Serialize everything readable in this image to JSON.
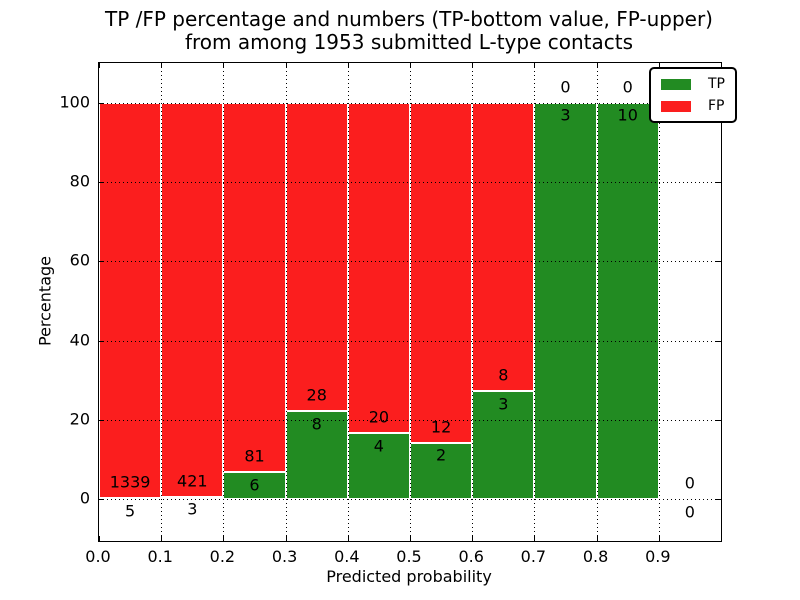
{
  "figure": {
    "title_line1": "TP /FP percentage and numbers (TP-bottom value, FP-upper)",
    "title_line2": "from among 1953 submitted L-type contacts",
    "xlabel": "Predicted probability",
    "ylabel": "Percentage"
  },
  "chart_data": {
    "type": "bar",
    "stacked": true,
    "normalized_to_percent": true,
    "title": "TP /FP percentage and numbers (TP-bottom value, FP-upper) from among 1953 submitted L-type contacts",
    "xlabel": "Predicted probability",
    "ylabel": "Percentage",
    "total_contacts": 1953,
    "xlim": [
      0.0,
      1.0
    ],
    "ylim": [
      -10.5,
      110
    ],
    "bin_width": 0.1,
    "bin_starts": [
      0.0,
      0.1,
      0.2,
      0.3,
      0.4,
      0.5,
      0.6,
      0.7,
      0.8,
      0.9
    ],
    "categories": [
      "0.0-0.1",
      "0.1-0.2",
      "0.2-0.3",
      "0.3-0.4",
      "0.4-0.5",
      "0.5-0.6",
      "0.6-0.7",
      "0.7-0.8",
      "0.8-0.9",
      "0.9-1.0"
    ],
    "series": [
      {
        "name": "TP",
        "color": "#228b22",
        "values": [
          5,
          3,
          6,
          8,
          4,
          2,
          3,
          3,
          10,
          0
        ]
      },
      {
        "name": "FP",
        "color": "#fb1e1e",
        "values": [
          1339,
          421,
          81,
          28,
          20,
          12,
          8,
          0,
          0,
          0
        ]
      }
    ],
    "tp_percent_of_bin": [
      0.37,
      0.71,
      6.9,
      22.2,
      16.7,
      14.3,
      27.3,
      100,
      100,
      0
    ],
    "xticks": [
      "0.0",
      "0.1",
      "0.2",
      "0.3",
      "0.4",
      "0.5",
      "0.6",
      "0.7",
      "0.8",
      "0.9"
    ],
    "yticks": [
      0,
      20,
      40,
      60,
      80,
      100
    ],
    "grid": true,
    "grid_style": "dotted",
    "legend_position": "upper right",
    "annotation_note": "FP count printed above TP/FP boundary, TP count printed below it"
  },
  "legend": {
    "items": [
      {
        "label": "TP",
        "color": "#228b22"
      },
      {
        "label": "FP",
        "color": "#fb1e1e"
      }
    ]
  }
}
